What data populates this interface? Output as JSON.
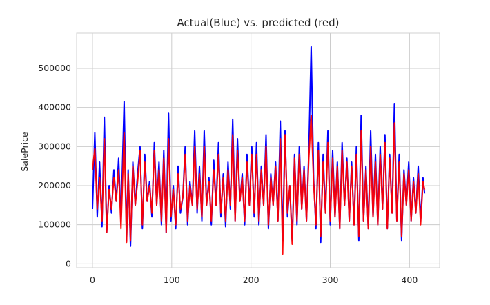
{
  "chart_data": {
    "type": "line",
    "title": "Actual(Blue) vs. predicted (red)",
    "xlabel": "",
    "ylabel": "SalePrice",
    "xlim": [
      -20,
      438
    ],
    "ylim": [
      -10000,
      590000
    ],
    "grid": true,
    "xticks": [
      0,
      100,
      200,
      300,
      400
    ],
    "xtick_labels": [
      "0",
      "100",
      "200",
      "300",
      "400"
    ],
    "yticks": [
      0,
      100000,
      200000,
      300000,
      400000,
      500000
    ],
    "ytick_labels": [
      "0",
      "100000",
      "200000",
      "300000",
      "400000",
      "500000"
    ],
    "series": [
      {
        "color": "#0000ff",
        "x": [
          0,
          3,
          6,
          9,
          12,
          15,
          18,
          21,
          24,
          27,
          30,
          33,
          36,
          40,
          43,
          45,
          48,
          51,
          54,
          57,
          60,
          63,
          66,
          69,
          72,
          75,
          78,
          81,
          84,
          87,
          90,
          93,
          96,
          99,
          102,
          105,
          108,
          111,
          114,
          117,
          120,
          123,
          126,
          129,
          132,
          135,
          138,
          141,
          144,
          147,
          150,
          153,
          156,
          159,
          162,
          165,
          168,
          171,
          174,
          177,
          180,
          183,
          186,
          189,
          192,
          195,
          198,
          201,
          204,
          207,
          210,
          213,
          216,
          219,
          222,
          225,
          228,
          231,
          234,
          237,
          240,
          243,
          246,
          249,
          252,
          255,
          258,
          261,
          264,
          267,
          270,
          273,
          276,
          279,
          282,
          285,
          288,
          291,
          294,
          297,
          300,
          303,
          306,
          309,
          312,
          315,
          318,
          321,
          324,
          327,
          330,
          333,
          336,
          339,
          342,
          345,
          348,
          351,
          354,
          357,
          360,
          363,
          366,
          369,
          372,
          375,
          378,
          381,
          384,
          387,
          390,
          393,
          396,
          399,
          402,
          405,
          408,
          411,
          414,
          417,
          419
        ],
        "y": [
          140000,
          335000,
          120000,
          260000,
          95000,
          375000,
          80000,
          200000,
          130000,
          240000,
          160000,
          270000,
          110000,
          415000,
          60000,
          240000,
          45000,
          260000,
          150000,
          230000,
          300000,
          90000,
          280000,
          160000,
          210000,
          120000,
          310000,
          150000,
          260000,
          100000,
          290000,
          80000,
          385000,
          110000,
          200000,
          90000,
          250000,
          130000,
          170000,
          300000,
          100000,
          210000,
          150000,
          340000,
          130000,
          250000,
          110000,
          340000,
          150000,
          220000,
          100000,
          265000,
          150000,
          310000,
          120000,
          230000,
          95000,
          260000,
          140000,
          370000,
          110000,
          320000,
          160000,
          230000,
          100000,
          280000,
          150000,
          300000,
          120000,
          310000,
          100000,
          250000,
          150000,
          330000,
          90000,
          230000,
          150000,
          260000,
          110000,
          365000,
          60000,
          340000,
          120000,
          200000,
          60000,
          280000,
          100000,
          300000,
          140000,
          250000,
          110000,
          290000,
          555000,
          220000,
          90000,
          310000,
          55000,
          280000,
          130000,
          340000,
          100000,
          290000,
          120000,
          260000,
          90000,
          310000,
          150000,
          270000,
          110000,
          260000,
          100000,
          300000,
          60000,
          380000,
          110000,
          250000,
          90000,
          340000,
          120000,
          280000,
          100000,
          300000,
          140000,
          330000,
          90000,
          280000,
          130000,
          410000,
          110000,
          280000,
          60000,
          240000,
          150000,
          260000,
          110000,
          220000,
          130000,
          250000,
          110000,
          220000,
          180000
        ]
      },
      {
        "color": "#ff0000",
        "x": [
          0,
          3,
          6,
          9,
          12,
          15,
          18,
          21,
          24,
          27,
          30,
          33,
          36,
          40,
          43,
          45,
          48,
          51,
          54,
          57,
          60,
          63,
          66,
          69,
          72,
          75,
          78,
          81,
          84,
          87,
          90,
          93,
          96,
          99,
          102,
          105,
          108,
          111,
          114,
          117,
          120,
          123,
          126,
          129,
          132,
          135,
          138,
          141,
          144,
          147,
          150,
          153,
          156,
          159,
          162,
          165,
          168,
          171,
          174,
          177,
          180,
          183,
          186,
          189,
          192,
          195,
          198,
          201,
          204,
          207,
          210,
          213,
          216,
          219,
          222,
          225,
          228,
          231,
          234,
          237,
          240,
          243,
          246,
          249,
          252,
          255,
          258,
          261,
          264,
          267,
          270,
          273,
          276,
          279,
          282,
          285,
          288,
          291,
          294,
          297,
          300,
          303,
          306,
          309,
          312,
          315,
          318,
          321,
          324,
          327,
          330,
          333,
          336,
          339,
          342,
          345,
          348,
          351,
          354,
          357,
          360,
          363,
          366,
          369,
          372,
          375,
          378,
          381,
          384,
          387,
          390,
          393,
          396,
          399,
          402,
          405,
          408,
          411,
          414,
          417,
          419
        ],
        "y": [
          240000,
          295000,
          140000,
          220000,
          110000,
          320000,
          80000,
          190000,
          140000,
          220000,
          160000,
          240000,
          90000,
          335000,
          55000,
          230000,
          60000,
          250000,
          150000,
          210000,
          290000,
          100000,
          260000,
          160000,
          200000,
          130000,
          290000,
          150000,
          240000,
          110000,
          270000,
          80000,
          320000,
          120000,
          190000,
          100000,
          230000,
          140000,
          170000,
          280000,
          110000,
          200000,
          150000,
          300000,
          140000,
          230000,
          120000,
          300000,
          150000,
          210000,
          110000,
          240000,
          150000,
          280000,
          130000,
          220000,
          110000,
          240000,
          150000,
          330000,
          110000,
          290000,
          160000,
          220000,
          110000,
          260000,
          150000,
          280000,
          130000,
          280000,
          110000,
          240000,
          150000,
          300000,
          100000,
          220000,
          150000,
          250000,
          110000,
          320000,
          25000,
          330000,
          130000,
          200000,
          50000,
          270000,
          110000,
          280000,
          140000,
          240000,
          110000,
          270000,
          380000,
          210000,
          100000,
          290000,
          70000,
          260000,
          130000,
          310000,
          110000,
          270000,
          120000,
          250000,
          90000,
          290000,
          150000,
          260000,
          110000,
          250000,
          100000,
          280000,
          70000,
          340000,
          110000,
          240000,
          90000,
          300000,
          120000,
          260000,
          100000,
          280000,
          140000,
          310000,
          90000,
          270000,
          130000,
          360000,
          110000,
          260000,
          70000,
          230000,
          150000,
          240000,
          110000,
          210000,
          130000,
          230000,
          100000,
          210000,
          190000
        ]
      }
    ]
  }
}
